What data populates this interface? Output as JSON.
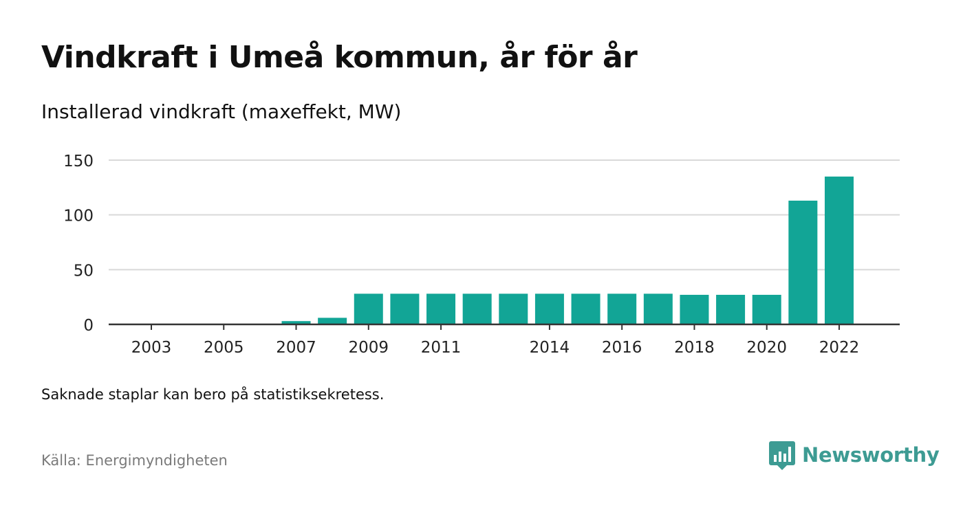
{
  "title": "Vindkraft i Umeå kommun, år för år",
  "subtitle": "Installerad vindkraft (maxeffekt, MW)",
  "note": "Saknade staplar kan bero på statistiksekretess.",
  "source": "Källa: Energimyndigheten",
  "brand": {
    "name": "Newsworthy",
    "icon": "newsworthy-logo-icon",
    "color": "#3d9b93"
  },
  "colors": {
    "bar": "#12a596",
    "grid": "#d9d9d9",
    "axis": "#333333"
  },
  "chart_data": {
    "type": "bar",
    "categories": [
      "2003",
      "2004",
      "2005",
      "2006",
      "2007",
      "2008",
      "2009",
      "2010",
      "2011",
      "2012",
      "2013",
      "2014",
      "2015",
      "2016",
      "2017",
      "2018",
      "2019",
      "2020",
      "2021",
      "2022"
    ],
    "values": [
      0,
      0,
      0,
      0,
      3,
      6,
      28,
      28,
      28,
      28,
      28,
      28,
      28,
      28,
      28,
      27,
      27,
      27,
      113,
      135
    ],
    "x_tick_labels": [
      "2003",
      "2005",
      "2007",
      "2009",
      "2011",
      "2014",
      "2016",
      "2018",
      "2020",
      "2022"
    ],
    "y_ticks": [
      0,
      50,
      100,
      150
    ],
    "ylim": [
      0,
      150
    ],
    "xlabel": "",
    "ylabel": "",
    "grid": true,
    "legend": false
  }
}
